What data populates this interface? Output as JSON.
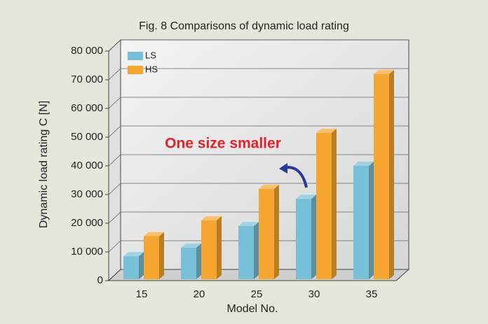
{
  "chart_data": {
    "type": "bar3d",
    "title": "Fig. 8  Comparisons of dynamic load rating",
    "x_label": "Model No.",
    "y_label": "Dynamic load rating C [N]",
    "annotation": "One size smaller",
    "categories": [
      "15",
      "20",
      "25",
      "30",
      "35"
    ],
    "series": [
      {
        "name": "LS",
        "color": "#78bfd8",
        "values": [
          8500,
          11500,
          19000,
          28500,
          40000
        ]
      },
      {
        "name": "HS",
        "color": "#f6a630",
        "values": [
          15500,
          21000,
          32000,
          51500,
          72000
        ]
      }
    ],
    "ylim": [
      0,
      80000
    ],
    "yticks": [
      0,
      {
        "value": 10000,
        "label": "10 000"
      },
      {
        "value": 20000,
        "label": "20 000"
      },
      {
        "value": 30000,
        "label": "30 000"
      },
      {
        "value": 40000,
        "label": "40 000"
      },
      {
        "value": 50000,
        "label": "50 000"
      },
      {
        "value": 60000,
        "label": "60 000"
      },
      {
        "value": 70000,
        "label": "70 000"
      },
      {
        "value": 80000,
        "label": "80 000"
      }
    ],
    "grid": true,
    "legend": "top-left"
  }
}
